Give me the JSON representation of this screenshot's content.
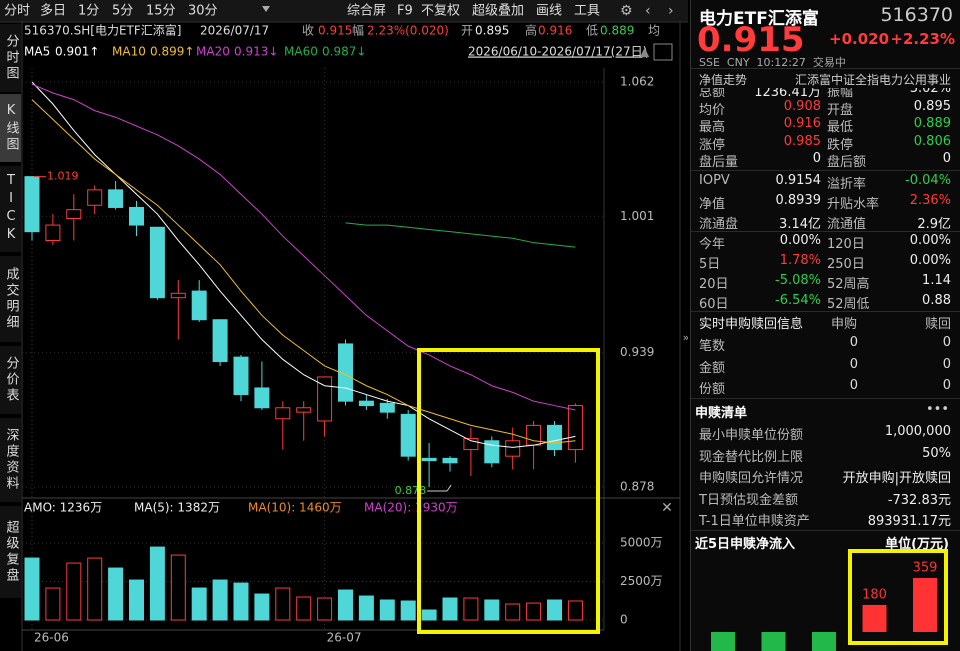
{
  "toolbar": {
    "tabs": [
      "分时",
      "多日",
      "1分",
      "5分",
      "15分",
      "30分"
    ],
    "tools": [
      "综合屏",
      "F9",
      "不复权",
      "超级叠加",
      "画线",
      "工具"
    ]
  },
  "sidebar": [
    "分时图",
    "K线图",
    "TICK",
    "成交明细",
    "分价表",
    "深度资料",
    "超级复盘"
  ],
  "info": {
    "symbol": "516370.SH[电力ETF汇添富]",
    "date": "2026/07/17",
    "items": [
      {
        "label": "收",
        "value": "0.915"
      },
      {
        "label": "幅",
        "value": "2.23%(0.020)"
      },
      {
        "label": "开",
        "value": "0.895"
      },
      {
        "label": "高",
        "value": "0.916"
      },
      {
        "label": "低",
        "value": "0.889"
      },
      {
        "label": "均",
        "value": ""
      }
    ],
    "range": "2026/06/10-2026/07/17(27日)"
  },
  "chart_data": [
    {
      "type": "candlestick",
      "categories": [
        "26-06",
        null,
        null,
        null,
        null,
        null,
        null,
        null,
        null,
        null,
        null,
        null,
        null,
        null,
        "26-07",
        null,
        null,
        null,
        null,
        null,
        null,
        null,
        null,
        null,
        null,
        null,
        null
      ],
      "open": [
        1.019,
        0.99,
        1.0,
        1.006,
        1.013,
        1.005,
        0.996,
        0.964,
        0.967,
        0.954,
        0.937,
        0.923,
        0.909,
        0.912,
        0.908,
        0.943,
        0.917,
        0.916,
        0.911,
        0.891,
        0.891,
        0.895,
        0.899,
        0.892,
        0.897,
        0.906,
        0.895
      ],
      "high": [
        1.019,
        1.002,
        1.011,
        1.015,
        1.017,
        1.008,
        0.996,
        0.972,
        0.972,
        0.954,
        0.938,
        0.935,
        0.917,
        0.917,
        0.928,
        0.945,
        0.92,
        0.918,
        0.913,
        0.898,
        0.892,
        0.905,
        0.901,
        0.905,
        0.908,
        0.908,
        0.916
      ],
      "low": [
        0.99,
        0.988,
        0.99,
        1.002,
        1.004,
        0.992,
        0.963,
        0.945,
        0.953,
        0.933,
        0.917,
        0.913,
        0.895,
        0.899,
        0.901,
        0.915,
        0.913,
        0.909,
        0.89,
        0.878,
        0.885,
        0.883,
        0.887,
        0.886,
        0.886,
        0.892,
        0.889
      ],
      "close": [
        0.994,
        0.997,
        1.004,
        1.013,
        1.005,
        0.997,
        0.964,
        0.966,
        0.954,
        0.935,
        0.92,
        0.914,
        0.914,
        0.914,
        0.928,
        0.917,
        0.915,
        0.912,
        0.892,
        0.89,
        0.889,
        0.9,
        0.889,
        0.899,
        0.906,
        0.895,
        0.915
      ],
      "up_color": "#ff3b3b",
      "down_color": "#4fd6d6",
      "series": [
        {
          "name": "MA5",
          "label": "0.901↑",
          "color": "#ffffff",
          "values": [
            1.062,
            1.052,
            1.04,
            1.029,
            1.02,
            1.011,
            1.002,
            0.99,
            0.979,
            0.967,
            0.956,
            0.945,
            0.936,
            0.929,
            0.924,
            0.923,
            0.92,
            0.917,
            0.915,
            0.909,
            0.904,
            0.899,
            0.897,
            0.896,
            0.897,
            0.899,
            0.901
          ]
        },
        {
          "name": "MA10",
          "label": "0.899↑",
          "color": "#f0c020",
          "values": [
            1.054,
            1.045,
            1.036,
            1.027,
            1.02,
            1.013,
            1.006,
            0.997,
            0.988,
            0.979,
            0.967,
            0.956,
            0.947,
            0.94,
            0.933,
            0.929,
            0.924,
            0.92,
            0.915,
            0.912,
            0.909,
            0.906,
            0.904,
            0.902,
            0.899,
            0.898,
            0.899
          ]
        },
        {
          "name": "MA20",
          "label": "0.913↓",
          "color": "#d040d0",
          "values": [
            1.061,
            1.057,
            1.054,
            1.049,
            1.046,
            1.042,
            1.038,
            1.033,
            1.027,
            1.02,
            1.011,
            1.002,
            0.992,
            0.983,
            0.974,
            0.965,
            0.956,
            0.949,
            0.942,
            0.938,
            0.933,
            0.929,
            0.924,
            0.921,
            0.917,
            0.915,
            0.913
          ]
        },
        {
          "name": "MA60",
          "label": "0.987↓",
          "color": "#20b050",
          "values": [
            null,
            null,
            null,
            null,
            null,
            null,
            null,
            null,
            null,
            null,
            null,
            null,
            null,
            null,
            null,
            0.998,
            0.997,
            0.997,
            0.996,
            0.995,
            0.994,
            0.993,
            0.992,
            0.991,
            0.989,
            0.988,
            0.987
          ]
        }
      ],
      "high_label": "1.019",
      "low_label": "0.878",
      "ylim": [
        0.878,
        1.062
      ],
      "yticks": [
        0.878,
        0.939,
        1.001,
        1.062
      ],
      "grid": true
    },
    {
      "type": "bar",
      "legend": [
        "AMO: 1236万",
        "MA(5): 1382万",
        "MA(10): 1460万",
        "MA(20): 1930万"
      ],
      "values": [
        4026,
        2078,
        3700,
        4026,
        3377,
        2597,
        4740,
        4220,
        2078,
        2597,
        2400,
        1688,
        2078,
        1494,
        1429,
        1948,
        1558,
        1300,
        1234,
        650,
        1430,
        1430,
        1300,
        1040,
        1100,
        1300,
        1236
      ],
      "ylim": [
        0,
        6500
      ],
      "yticks": [
        0,
        {
          "value": 2500,
          "label": "2500万"
        },
        {
          "value": 5000,
          "label": "5000万"
        }
      ]
    },
    {
      "type": "bar",
      "title": "近5日申赎净流入",
      "unit": "单位(万元)",
      "values": [
        -130,
        -130,
        -130,
        180,
        359
      ],
      "pos_color": "#ff3333",
      "neg_color": "#22b84a"
    }
  ],
  "quote": {
    "name": "电力ETF汇添富",
    "code": "516370",
    "price": "0.915",
    "change": "+0.020",
    "pct": "+2.23%",
    "status": "SSE  CNY  10:12:27  交易中",
    "nav_tab": "净值走势",
    "index": "汇添富中证全指电力公用事业",
    "stats_a": [
      [
        "总额",
        "1236.41万",
        "振幅",
        "3.02%"
      ],
      [
        "均价",
        "0.908",
        "开盘",
        "0.895"
      ],
      [
        "最高",
        "0.916",
        "最低",
        "0.889"
      ],
      [
        "涨停",
        "0.985",
        "跌停",
        "0.806"
      ],
      [
        "盘后量",
        "0",
        "盘后额",
        "0"
      ]
    ],
    "stats_b": [
      [
        "IOPV",
        "0.9154",
        "溢折率",
        "-0.04%"
      ],
      [
        "净值",
        "0.8939",
        "升贴水率",
        "2.36%"
      ],
      [
        "流通盘",
        "3.14亿",
        "流通值",
        "2.9亿"
      ]
    ],
    "stats_c": [
      [
        "今年",
        "0.00%",
        "120日",
        "0.00%"
      ],
      [
        "5日",
        "1.78%",
        "250日",
        "0.00%"
      ],
      [
        "20日",
        "-5.08%",
        "52周高",
        "1.14"
      ],
      [
        "60日",
        "-6.54%",
        "52周低",
        "0.88"
      ]
    ],
    "sub": {
      "title": "实时申购赎回信息",
      "cols": [
        "申购",
        "赎回"
      ],
      "rows": [
        [
          "笔数",
          "0",
          "0"
        ],
        [
          "金额",
          "0",
          "0"
        ],
        [
          "份额",
          "0",
          "0"
        ]
      ]
    },
    "list": {
      "title": "申赎清单",
      "rows": [
        [
          "最小申赎单位份额",
          "1,000,000"
        ],
        [
          "现金替代比例上限",
          "50%"
        ],
        [
          "申购赎回允许情况",
          "开放申购|开放赎回"
        ],
        [
          "T日预估现金差额",
          "-732.83元"
        ],
        [
          "T-1日单位申赎资产",
          "893931.17元"
        ]
      ]
    }
  }
}
